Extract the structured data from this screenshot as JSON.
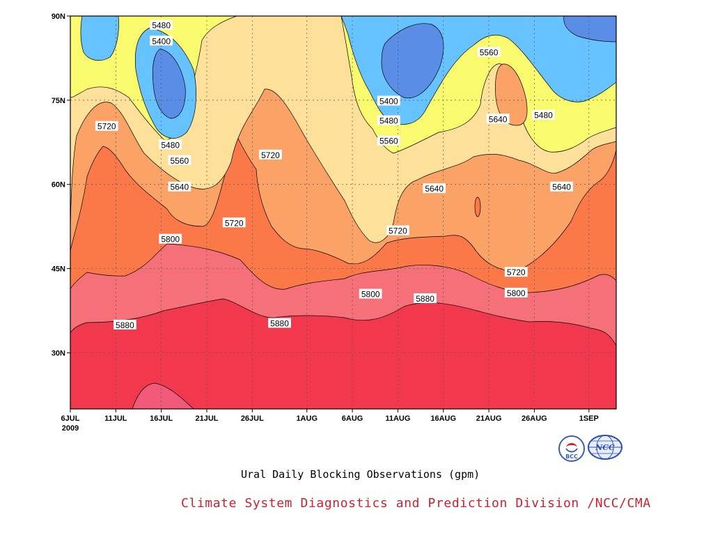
{
  "chart_data": {
    "type": "heatmap",
    "title": "Ural Daily Blocking Observations (gpm)",
    "credit": "Climate System Diagnostics and Prediction Division /NCC/CMA",
    "x_axis": {
      "start": "2009-07-06",
      "end": "2009-09-04",
      "ticks": [
        {
          "date": "2009-07-06",
          "label": "6JUL"
        },
        {
          "date": "2009-07-11",
          "label": "11JUL"
        },
        {
          "date": "2009-07-16",
          "label": "16JUL"
        },
        {
          "date": "2009-07-21",
          "label": "21JUL"
        },
        {
          "date": "2009-07-26",
          "label": "26JUL"
        },
        {
          "date": "2009-08-01",
          "label": "1AUG"
        },
        {
          "date": "2009-08-06",
          "label": "6AUG"
        },
        {
          "date": "2009-08-11",
          "label": "11AUG"
        },
        {
          "date": "2009-08-16",
          "label": "16AUG"
        },
        {
          "date": "2009-08-21",
          "label": "21AUG"
        },
        {
          "date": "2009-08-26",
          "label": "26AUG"
        },
        {
          "date": "2009-09-01",
          "label": "1SEP"
        }
      ],
      "year_label": "2009"
    },
    "y_axis": {
      "range": [
        20,
        90
      ],
      "ticks": [
        {
          "value": 30,
          "label": "30N"
        },
        {
          "value": 45,
          "label": "45N"
        },
        {
          "value": 60,
          "label": "60N"
        },
        {
          "value": 75,
          "label": "75N"
        },
        {
          "value": 90,
          "label": "90N"
        }
      ]
    },
    "grid": true,
    "levels": [
      5400,
      5480,
      5560,
      5640,
      5720,
      5800,
      5880,
      5960
    ],
    "colors": {
      "below_5400": "#5a8ee6",
      "5400_5480": "#66c3ff",
      "5480_5560": "#fafa6e",
      "5560_5640": "#fde19b",
      "5640_5720": "#fba266",
      "5720_5800": "#fb7848",
      "5800_5880": "#f6707a",
      "5880_5960": "#f2384c",
      "above_5960": "#f05a78"
    },
    "contour_labels": [
      {
        "value": "5480",
        "date": "2009-07-16",
        "lat": 88.3
      },
      {
        "value": "5400",
        "date": "2009-07-16",
        "lat": 85.5
      },
      {
        "value": "5480",
        "date": "2009-07-17",
        "lat": 67.0
      },
      {
        "value": "5560",
        "date": "2009-07-18",
        "lat": 64.2
      },
      {
        "value": "5640",
        "date": "2009-07-18",
        "lat": 59.5
      },
      {
        "value": "5720",
        "date": "2009-07-10",
        "lat": 70.3
      },
      {
        "value": "5720",
        "date": "2009-07-28",
        "lat": 65.2
      },
      {
        "value": "5720",
        "date": "2009-07-24",
        "lat": 53.1
      },
      {
        "value": "5800",
        "date": "2009-07-17",
        "lat": 50.2
      },
      {
        "value": "5880",
        "date": "2009-07-12",
        "lat": 34.9
      },
      {
        "value": "5880",
        "date": "2009-07-29",
        "lat": 35.2
      },
      {
        "value": "5400",
        "date": "2009-08-10",
        "lat": 74.8
      },
      {
        "value": "5480",
        "date": "2009-08-10",
        "lat": 71.3
      },
      {
        "value": "5560",
        "date": "2009-08-10",
        "lat": 67.7
      },
      {
        "value": "5640",
        "date": "2009-08-15",
        "lat": 59.2
      },
      {
        "value": "5720",
        "date": "2009-08-11",
        "lat": 51.7
      },
      {
        "value": "5800",
        "date": "2009-08-08",
        "lat": 40.4
      },
      {
        "value": "5880",
        "date": "2009-08-14",
        "lat": 39.6
      },
      {
        "value": "5560",
        "date": "2009-08-21",
        "lat": 83.5
      },
      {
        "value": "5640",
        "date": "2009-08-22",
        "lat": 71.6
      },
      {
        "value": "5480",
        "date": "2009-08-27",
        "lat": 72.3
      },
      {
        "value": "5640",
        "date": "2009-08-29",
        "lat": 59.5
      },
      {
        "value": "5720",
        "date": "2009-08-24",
        "lat": 44.3
      },
      {
        "value": "5800",
        "date": "2009-08-24",
        "lat": 40.6
      }
    ]
  },
  "logos": {
    "bcc": {
      "text": "BCC",
      "icon": "bcc-logo-icon"
    },
    "ncc": {
      "text": "NCC",
      "icon": "ncc-globe-icon"
    }
  }
}
